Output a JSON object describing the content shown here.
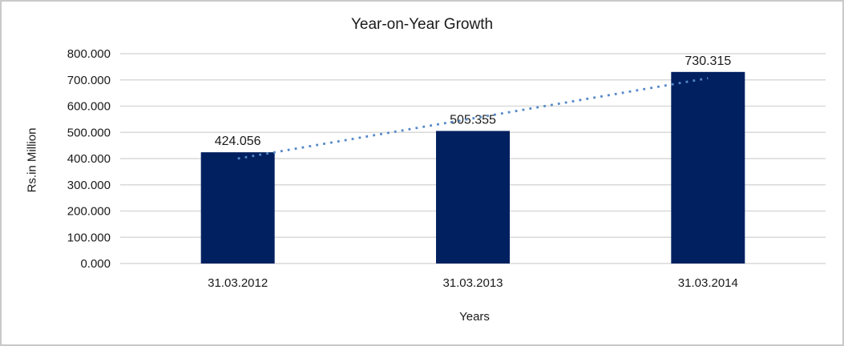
{
  "frame": {
    "background": "#ffffff",
    "border_color": "#c9c9c9"
  },
  "chart_data": {
    "type": "bar",
    "title": "Year-on-Year Growth",
    "xlabel": "Years",
    "ylabel": "Rs.in Million",
    "categories": [
      "31.03.2012",
      "31.03.2013",
      "31.03.2014"
    ],
    "values": [
      424.056,
      505.355,
      730.315
    ],
    "value_labels": [
      "424.056",
      "505.355",
      "730.315"
    ],
    "ytick_values": [
      0,
      100,
      200,
      300,
      400,
      500,
      600,
      700,
      800
    ],
    "ytick_labels": [
      "0.000",
      "100.000",
      "200.000",
      "300.000",
      "400.000",
      "500.000",
      "600.000",
      "700.000",
      "800.000"
    ],
    "ylim": [
      0,
      800
    ],
    "grid": "horizontal",
    "legend": "none",
    "bar_color": "#002060",
    "gridline_color": "#d9d9d9",
    "text_color": "#1a1a1a",
    "trendline": {
      "type": "linear",
      "style": "dotted",
      "color": "#5588c8"
    }
  }
}
